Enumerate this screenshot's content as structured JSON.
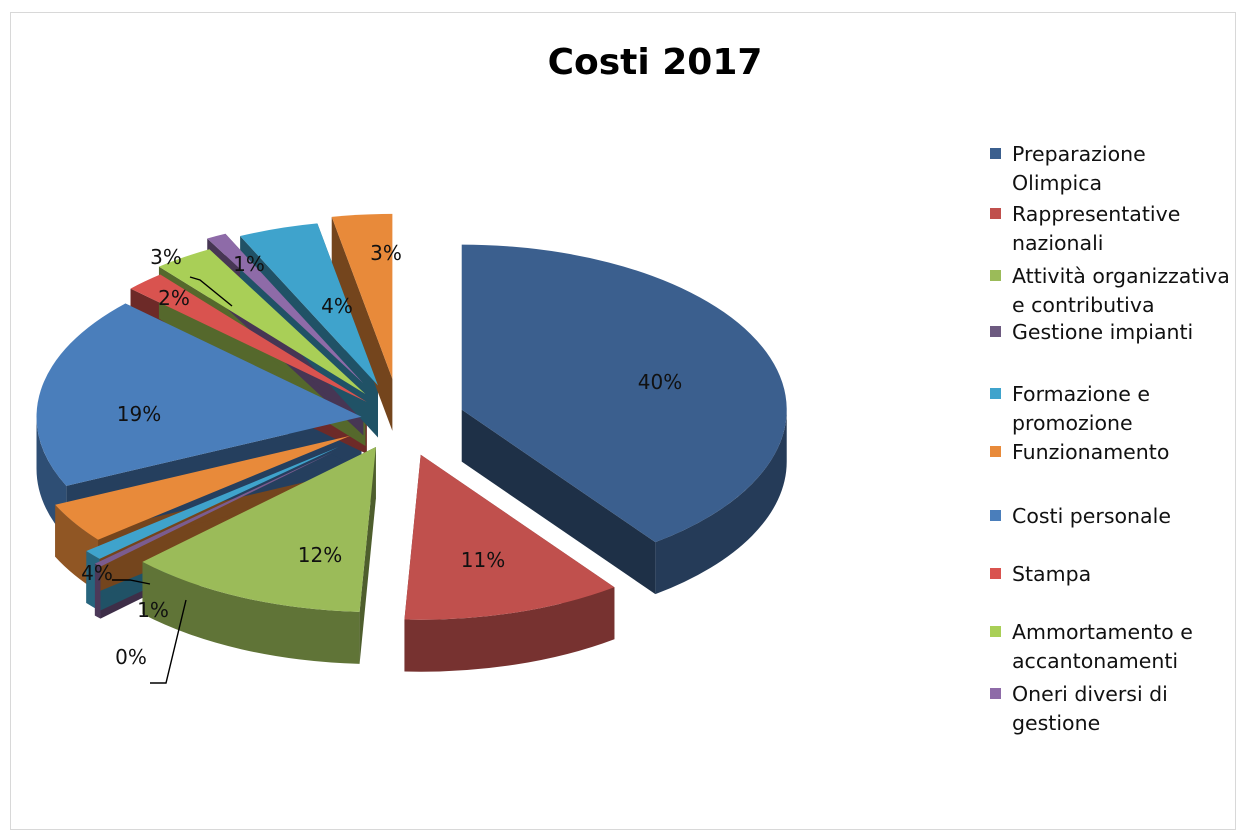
{
  "chart_data": {
    "type": "pie",
    "title": "Costi 2017",
    "legend_position": "right",
    "slices": [
      {
        "label": "Preparazione Olimpica",
        "value": 40,
        "value_label": "40%",
        "color": "#3b5f8e"
      },
      {
        "label": "Rappresentative nazionali",
        "value": 11,
        "value_label": "11%",
        "color": "#c0504d"
      },
      {
        "label": "Attività organizzativa e contributiva",
        "value": 12,
        "value_label": "12%",
        "color": "#9bbb59"
      },
      {
        "label": "Gestione impianti",
        "value": 0.4,
        "value_label": "0%",
        "color": "#7b5c8f"
      },
      {
        "label": "Formazione e promozione",
        "value": 1,
        "value_label": "1%",
        "color": "#3fa3cc"
      },
      {
        "label": "Funzionamento",
        "value": 4,
        "value_label": "4%",
        "color": "#e88a3a"
      },
      {
        "label": "Costi personale",
        "value": 19,
        "value_label": "19%",
        "color": "#4a7ebb"
      },
      {
        "label": "Stampa",
        "value": 2,
        "value_label": "2%",
        "color": "#d9534f"
      },
      {
        "label": "Ammortamento e accantonamenti",
        "value": 3,
        "value_label": "3%",
        "color": "#a9cf57"
      },
      {
        "label": "Oneri diversi di gestione",
        "value": 1,
        "value_label": "1%",
        "color": "#8e6ba8"
      },
      {
        "label": "",
        "value": 4,
        "value_label": "4%",
        "color": "#3fa3cc"
      },
      {
        "label": "",
        "value": 3,
        "value_label": "3%",
        "color": "#e88a3a"
      }
    ]
  },
  "legend": [
    {
      "lines": [
        "Preparazione",
        "Olimpica"
      ],
      "color": "#3b5f8e"
    },
    {
      "lines": [
        "Rappresentative",
        "nazionali"
      ],
      "color": "#c0504d"
    },
    {
      "lines": [
        "Attività organizzativa",
        "e contributiva"
      ],
      "color": "#9bbb59"
    },
    {
      "lines": [
        "Gestione impianti"
      ],
      "color": "#6d5a80"
    },
    {
      "lines": [
        "Formazione e",
        "promozione"
      ],
      "color": "#3fa3cc"
    },
    {
      "lines": [
        "Funzionamento"
      ],
      "color": "#e88a3a"
    },
    {
      "lines": [
        "Costi personale"
      ],
      "color": "#4a7ebb"
    },
    {
      "lines": [
        "Stampa"
      ],
      "color": "#d9534f"
    },
    {
      "lines": [
        "Ammortamento e",
        "accantonamenti"
      ],
      "color": "#a9cf57"
    },
    {
      "lines": [
        "Oneri diversi di",
        "gestione"
      ],
      "color": "#8e6ba8"
    }
  ]
}
